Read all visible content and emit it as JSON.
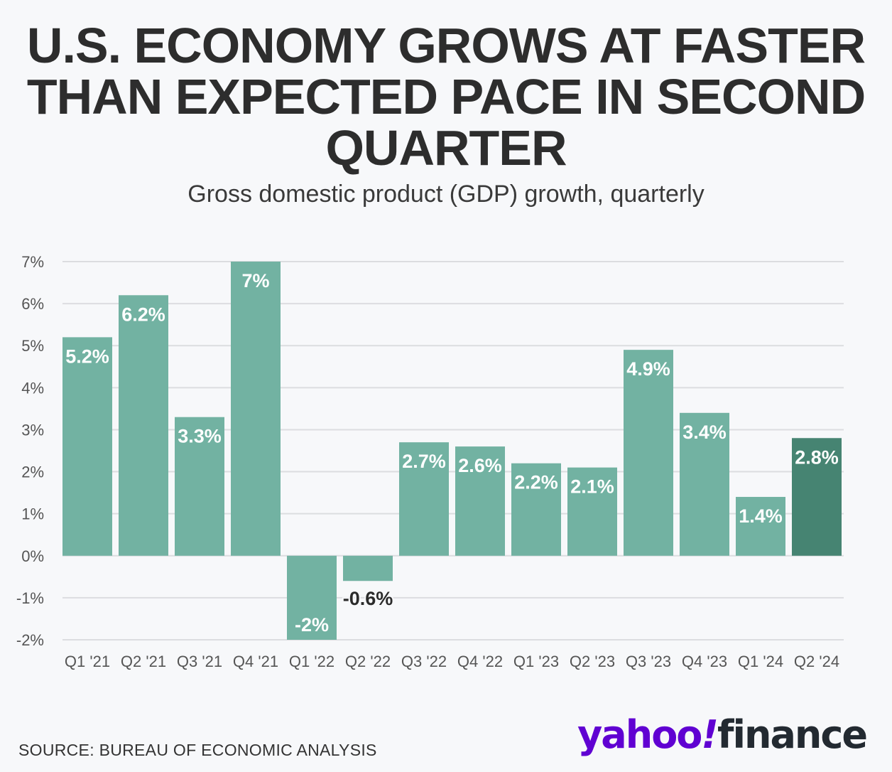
{
  "title": "U.S. ECONOMY GROWS AT FASTER\nTHAN EXPECTED PACE IN SECOND\nQUARTER",
  "subtitle": "Gross domestic product (GDP) growth, quarterly",
  "source": "SOURCE: BUREAU OF ECONOMIC ANALYSIS",
  "logo": {
    "part1": "yahoo",
    "part2": "!",
    "part3": "finance"
  },
  "colors": {
    "bar": "#72b2a2",
    "bar_highlight": "#468472",
    "grid": "#dcdde0",
    "axis_text": "#555555",
    "label_dark": "#2b2b2b"
  },
  "chart_data": {
    "type": "bar",
    "categories": [
      "Q1 '21",
      "Q2 '21",
      "Q3 '21",
      "Q4 '21",
      "Q1 '22",
      "Q2 '22",
      "Q3 '22",
      "Q4 '22",
      "Q1 '23",
      "Q2 '23",
      "Q3 '23",
      "Q4 '23",
      "Q1 '24",
      "Q2 '24"
    ],
    "values": [
      5.2,
      6.2,
      3.3,
      7,
      -2,
      -0.6,
      2.7,
      2.6,
      2.2,
      2.1,
      4.9,
      3.4,
      1.4,
      2.8
    ],
    "data_labels": [
      "5.2%",
      "6.2%",
      "3.3%",
      "7%",
      "-2%",
      "-0.6%",
      "2.7%",
      "2.6%",
      "2.2%",
      "2.1%",
      "4.9%",
      "3.4%",
      "1.4%",
      "2.8%"
    ],
    "highlight_index": 13,
    "ylim": [
      -2,
      7
    ],
    "yticks": [
      7,
      6,
      5,
      4,
      3,
      2,
      1,
      0,
      -1,
      -2
    ],
    "ytick_labels": [
      "7%",
      "6%",
      "5%",
      "4%",
      "3%",
      "2%",
      "1%",
      "0%",
      "-1%",
      "-2%"
    ],
    "title": "",
    "xlabel": "",
    "ylabel": "",
    "grid": true,
    "legend": "none"
  }
}
